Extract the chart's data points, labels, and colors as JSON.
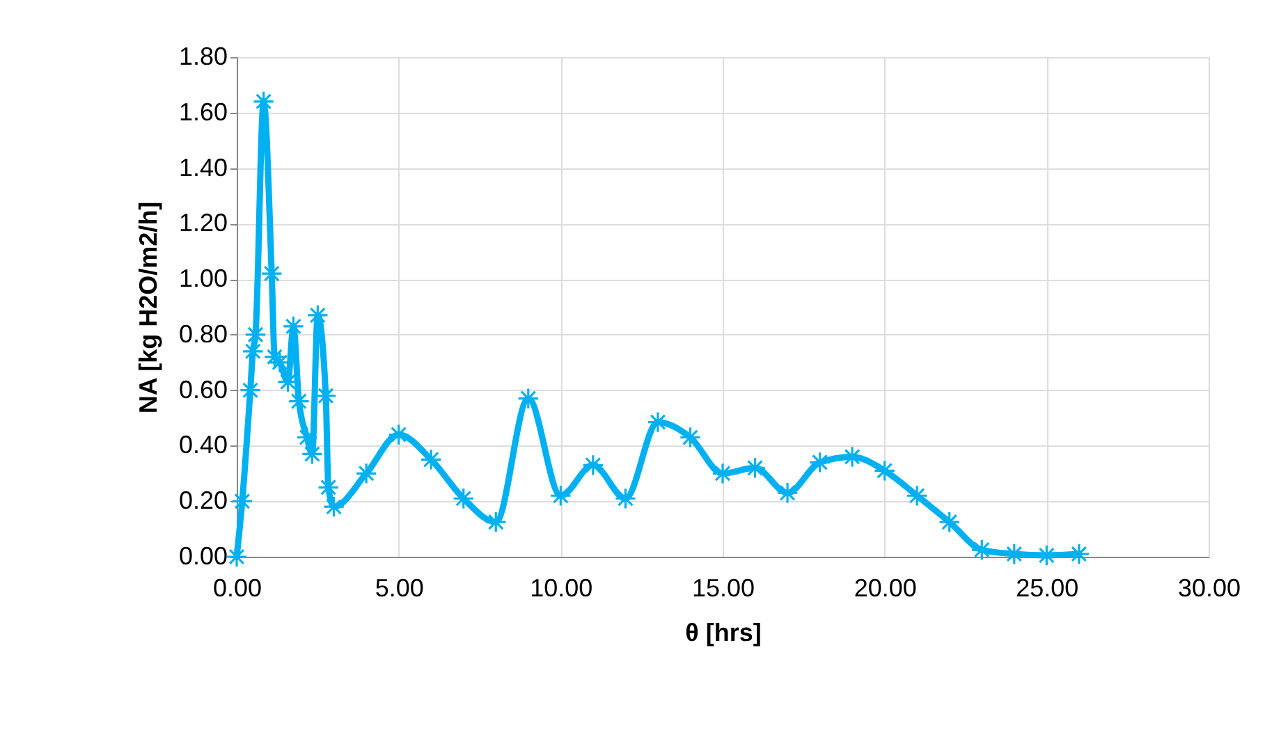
{
  "chart_data": {
    "type": "line",
    "xlabel": "θ [hrs]",
    "ylabel": "NA [kg H2O/m2/h]",
    "x": [
      0,
      0.17,
      0.42,
      0.5,
      0.58,
      0.83,
      1.08,
      1.17,
      1.33,
      1.58,
      1.75,
      1.92,
      2.17,
      2.33,
      2.5,
      2.75,
      2.83,
      3,
      4,
      5,
      6,
      7,
      8,
      9,
      10,
      11,
      12,
      13,
      14,
      15,
      16,
      17,
      18,
      19,
      20,
      21,
      22,
      23,
      24,
      25,
      26
    ],
    "series": [
      {
        "color": "#00b0f0",
        "values": [
          0,
          0.2,
          0.6,
          0.74,
          0.8,
          1.64,
          1.02,
          0.72,
          0.7,
          0.63,
          0.83,
          0.56,
          0.43,
          0.37,
          0.87,
          0.58,
          0.25,
          0.18,
          0.3,
          0.44,
          0.35,
          0.21,
          0.125,
          0.57,
          0.22,
          0.33,
          0.21,
          0.485,
          0.43,
          0.3,
          0.32,
          0.23,
          0.34,
          0.36,
          0.31,
          0.22,
          0.125,
          0.025,
          0.01,
          0.005,
          0.01
        ]
      }
    ],
    "xlim": [
      0,
      30
    ],
    "ylim": [
      0,
      1.8
    ],
    "xticks": [
      {
        "value": 0,
        "label": "0.00"
      },
      {
        "value": 5,
        "label": "5.00"
      },
      {
        "value": 10,
        "label": "10.00"
      },
      {
        "value": 15,
        "label": "15.00"
      },
      {
        "value": 20,
        "label": "20.00"
      },
      {
        "value": 25,
        "label": "25.00"
      },
      {
        "value": 30,
        "label": "30.00"
      }
    ],
    "yticks": [
      {
        "value": 0,
        "label": "0.00"
      },
      {
        "value": 0.2,
        "label": "0.20"
      },
      {
        "value": 0.4,
        "label": "0.40"
      },
      {
        "value": 0.6,
        "label": "0.60"
      },
      {
        "value": 0.8,
        "label": "0.80"
      },
      {
        "value": 1.0,
        "label": "1.00"
      },
      {
        "value": 1.2,
        "label": "1.20"
      },
      {
        "value": 1.4,
        "label": "1.40"
      },
      {
        "value": 1.6,
        "label": "1.60"
      },
      {
        "value": 1.8,
        "label": "1.80"
      }
    ],
    "grid": true,
    "marker": "cross",
    "line_style": "solid"
  }
}
